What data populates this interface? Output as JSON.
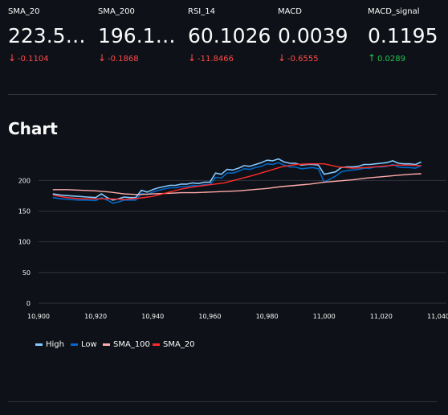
{
  "metrics": [
    {
      "label": "SMA_20",
      "value": "223.5…",
      "delta": "-0.1104",
      "direction": "down"
    },
    {
      "label": "SMA_200",
      "value": "196.1…",
      "delta": "-0.1868",
      "direction": "down"
    },
    {
      "label": "RSI_14",
      "value": "60.1026",
      "delta": "-11.8466",
      "direction": "down"
    },
    {
      "label": "MACD",
      "value": "0.0039",
      "delta": "-0.6555",
      "direction": "down"
    },
    {
      "label": "MACD_signal",
      "value": "0.1195",
      "delta": "0.0289",
      "direction": "up"
    }
  ],
  "section": {
    "title": "Chart"
  },
  "colors": {
    "background": "#0e1117",
    "negative": "#ff4b4b",
    "positive": "#21c354",
    "high": "#83c9ff",
    "low": "#0068c9",
    "sma100": "#ffabab",
    "sma20": "#ff2b2b"
  },
  "chart_data": {
    "type": "line",
    "title": "",
    "xlabel": "",
    "ylabel": "",
    "xlim": [
      10900,
      11040
    ],
    "ylim": [
      0,
      245
    ],
    "x_ticks": [
      10900,
      10920,
      10940,
      10960,
      10980,
      11000,
      11020,
      11040
    ],
    "x_tick_labels": [
      "10,900",
      "10,920",
      "10,940",
      "10,960",
      "10,980",
      "11,000",
      "11,020",
      "11,040"
    ],
    "y_ticks": [
      0,
      50,
      100,
      150,
      200
    ],
    "y_tick_labels": [
      "0",
      "50",
      "100",
      "150",
      "200"
    ],
    "grid": true,
    "legend_position": "bottom-left",
    "series": [
      {
        "name": "High",
        "color": "#83c9ff",
        "x": [
          10905,
          10908,
          10911,
          10914,
          10917,
          10920,
          10922,
          10924,
          10926,
          10928,
          10930,
          10932,
          10934,
          10936,
          10938,
          10940,
          10942,
          10944,
          10946,
          10948,
          10950,
          10952,
          10954,
          10956,
          10958,
          10960,
          10962,
          10964,
          10966,
          10968,
          10970,
          10972,
          10974,
          10976,
          10978,
          10980,
          10982,
          10984,
          10986,
          10988,
          10990,
          10992,
          10994,
          10996,
          10998,
          11000,
          11002,
          11004,
          11006,
          11008,
          11010,
          11012,
          11014,
          11016,
          11018,
          11020,
          11022,
          11024,
          11026,
          11028,
          11030,
          11032,
          11034
        ],
        "y": [
          178,
          176,
          175,
          174,
          173,
          172,
          178,
          172,
          168,
          170,
          173,
          172,
          172,
          184,
          181,
          185,
          188,
          190,
          192,
          192,
          194,
          194,
          196,
          195,
          197,
          197,
          212,
          210,
          218,
          217,
          220,
          224,
          223,
          226,
          229,
          233,
          232,
          235,
          230,
          228,
          228,
          225,
          226,
          226,
          225,
          210,
          212,
          214,
          221,
          222,
          222,
          223,
          226,
          226,
          227,
          228,
          229,
          232,
          228,
          227,
          227,
          226,
          230
        ]
      },
      {
        "name": "Low",
        "color": "#0068c9",
        "x": [
          10905,
          10908,
          10911,
          10914,
          10917,
          10920,
          10922,
          10924,
          10926,
          10928,
          10930,
          10932,
          10934,
          10936,
          10938,
          10940,
          10942,
          10944,
          10946,
          10948,
          10950,
          10952,
          10954,
          10956,
          10958,
          10960,
          10962,
          10964,
          10966,
          10968,
          10970,
          10972,
          10974,
          10976,
          10978,
          10980,
          10982,
          10984,
          10986,
          10988,
          10990,
          10992,
          10994,
          10996,
          10998,
          11000,
          11002,
          11004,
          11006,
          11008,
          11010,
          11012,
          11014,
          11016,
          11018,
          11020,
          11022,
          11024,
          11026,
          11028,
          11030,
          11032,
          11034
        ],
        "y": [
          172,
          170,
          169,
          168,
          168,
          167,
          172,
          168,
          163,
          165,
          168,
          168,
          168,
          179,
          177,
          181,
          184,
          186,
          188,
          188,
          190,
          190,
          192,
          191,
          193,
          193,
          205,
          204,
          212,
          212,
          215,
          219,
          218,
          221,
          223,
          227,
          226,
          229,
          225,
          222,
          222,
          219,
          220,
          221,
          219,
          197,
          202,
          207,
          214,
          216,
          217,
          218,
          220,
          220,
          222,
          222,
          223,
          226,
          222,
          221,
          221,
          220,
          224
        ]
      },
      {
        "name": "SMA_100",
        "color": "#ffabab",
        "x": [
          10905,
          10910,
          10915,
          10920,
          10925,
          10930,
          10935,
          10940,
          10945,
          10950,
          10955,
          10960,
          10965,
          10970,
          10975,
          10980,
          10985,
          10990,
          10995,
          11000,
          11005,
          11010,
          11015,
          11020,
          11025,
          11030,
          11034
        ],
        "y": [
          185,
          185,
          184,
          183,
          181,
          178,
          177,
          178,
          179,
          180,
          180,
          181,
          182,
          183,
          185,
          187,
          190,
          192,
          194,
          197,
          199,
          201,
          204,
          206,
          208,
          210,
          211
        ]
      },
      {
        "name": "SMA_20",
        "color": "#ff2b2b",
        "x": [
          10905,
          10910,
          10915,
          10920,
          10925,
          10930,
          10935,
          10940,
          10945,
          10950,
          10955,
          10960,
          10965,
          10970,
          10975,
          10980,
          10985,
          10990,
          10995,
          11000,
          11005,
          11010,
          11015,
          11020,
          11025,
          11030,
          11034
        ],
        "y": [
          176,
          172,
          170,
          170,
          170,
          169,
          171,
          174,
          180,
          186,
          190,
          193,
          196,
          202,
          208,
          215,
          222,
          226,
          227,
          227,
          222,
          220,
          221,
          223,
          225,
          225,
          224
        ]
      }
    ]
  }
}
